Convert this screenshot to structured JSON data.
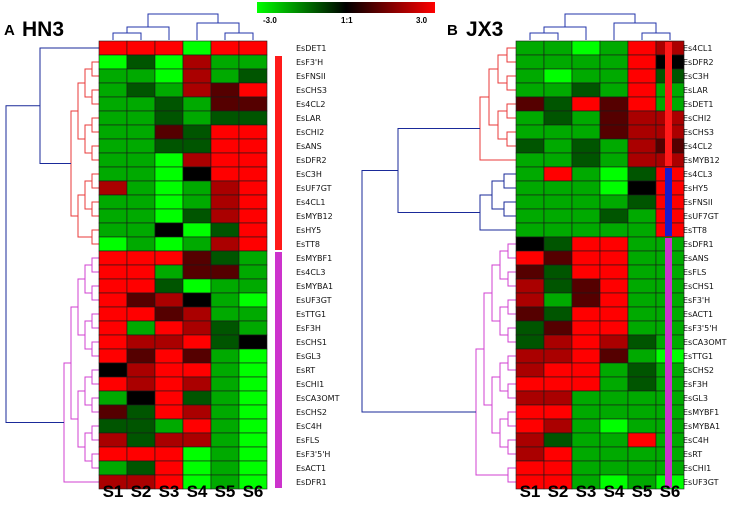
{
  "legend": {
    "min_label": "-3.0",
    "mid_label": "1:1",
    "max_label": "3.0",
    "low_color": "#00ff00",
    "mid_color": "#000000",
    "high_color": "#ff0000"
  },
  "chart_data": [
    {
      "type": "heatmap",
      "panel_letter": "A",
      "title": "HN3",
      "columns": [
        "S1",
        "S2",
        "S3",
        "S4",
        "S5",
        "S6"
      ],
      "color_range": [
        -3.0,
        3.0
      ],
      "rows": [
        "EsDET1",
        "EsF3'H",
        "EsFNSII",
        "EsCHS3",
        "Es4CL2",
        "EsLAR",
        "EsCHI2",
        "EsANS",
        "EsDFR2",
        "EsC3H",
        "EsUF7GT",
        "Es4CL1",
        "EsMYB12",
        "EsHY5",
        "EsTT8",
        "EsMYBF1",
        "Es4CL3",
        "EsMYBA1",
        "EsUF3GT",
        "EsTTG1",
        "EsF3H",
        "EsCHS1",
        "EsGL3",
        "EsRT",
        "EsCHI1",
        "EsCA3OMT",
        "EsCHS2",
        "EsC4H",
        "EsFLS",
        "EsF3'5'H",
        "EsACT1",
        "EsDFR1"
      ],
      "values": [
        [
          3,
          3,
          3,
          -3,
          3,
          3
        ],
        [
          -3,
          -1,
          -3,
          2,
          -2,
          -2
        ],
        [
          -2,
          -2,
          -3,
          2,
          -2,
          -1
        ],
        [
          -2,
          -1,
          -2,
          2,
          1,
          3
        ],
        [
          -2,
          -2,
          -1,
          -2,
          1,
          1
        ],
        [
          -2,
          -2,
          -1,
          -2,
          -1,
          -1
        ],
        [
          -2,
          -2,
          1,
          -1,
          3,
          3
        ],
        [
          -2,
          -2,
          -1,
          -1,
          3,
          3
        ],
        [
          -2,
          -2,
          -3,
          2,
          3,
          3
        ],
        [
          -2,
          -2,
          -3,
          0,
          3,
          3
        ],
        [
          2,
          -2,
          -3,
          -2,
          2,
          3
        ],
        [
          -2,
          -2,
          -3,
          -2,
          2,
          3
        ],
        [
          -2,
          -2,
          -3,
          -1,
          2,
          3
        ],
        [
          -2,
          -2,
          0,
          -3,
          -1,
          3
        ],
        [
          -3,
          -2,
          -3,
          -2,
          2,
          3
        ],
        [
          3,
          3,
          3,
          1,
          -1,
          -2
        ],
        [
          3,
          3,
          -2,
          1,
          1,
          -2
        ],
        [
          3,
          3,
          -1,
          -3,
          -2,
          -2
        ],
        [
          3,
          1,
          2,
          0,
          -2,
          -3
        ],
        [
          3,
          3,
          1,
          2,
          -2,
          -2
        ],
        [
          3,
          -2,
          3,
          2,
          -1,
          -2
        ],
        [
          3,
          2,
          2,
          3,
          -1,
          0
        ],
        [
          3,
          1,
          3,
          1,
          -2,
          -3
        ],
        [
          0,
          2,
          3,
          3,
          -2,
          -3
        ],
        [
          3,
          2,
          3,
          2,
          -2,
          -3
        ],
        [
          -2,
          0,
          3,
          -1,
          -2,
          -3
        ],
        [
          1,
          -1,
          3,
          2,
          -2,
          -3
        ],
        [
          -1,
          -1,
          -2,
          3,
          -2,
          -3
        ],
        [
          2,
          -1,
          2,
          2,
          -2,
          -3
        ],
        [
          3,
          3,
          3,
          -3,
          -2,
          -3
        ],
        [
          -2,
          -1,
          3,
          -3,
          -2,
          -3
        ],
        [
          2,
          2,
          3,
          -3,
          -2,
          -3
        ]
      ],
      "groups": [
        {
          "start": 1,
          "end": 14,
          "color": "#ff1a1a"
        },
        {
          "start": 15,
          "end": 31,
          "color": "#cc33cc"
        }
      ]
    },
    {
      "type": "heatmap",
      "panel_letter": "B",
      "title": "JX3",
      "columns": [
        "S1",
        "S2",
        "S3",
        "S4",
        "S5",
        "S6"
      ],
      "color_range": [
        -3.0,
        3.0
      ],
      "rows": [
        "Es4CL1",
        "EsDFR2",
        "EsC3H",
        "EsLAR",
        "EsDET1",
        "EsCHI2",
        "EsCHS3",
        "Es4CL2",
        "EsMYB12",
        "Es4CL3",
        "EsHY5",
        "EsFNSII",
        "EsUF7GT",
        "EsTT8",
        "EsDFR1",
        "EsANS",
        "EsFLS",
        "EsCHS1",
        "EsF3'H",
        "EsACT1",
        "EsF3'5'H",
        "EsCA3OMT",
        "EsTTG1",
        "EsCHS2",
        "EsF3H",
        "EsGL3",
        "EsMYBF1",
        "EsMYBA1",
        "EsC4H",
        "EsRT",
        "EsCHI1",
        "EsUF3GT"
      ],
      "values": [
        [
          -2,
          -2,
          -3,
          -2,
          3,
          2
        ],
        [
          -2,
          -2,
          -2,
          -2,
          3,
          0
        ],
        [
          -2,
          -3,
          -2,
          -2,
          3,
          -1
        ],
        [
          -2,
          -2,
          -1,
          -2,
          3,
          -2
        ],
        [
          1,
          -1,
          3,
          1,
          3,
          -2
        ],
        [
          -2,
          -1,
          -2,
          1,
          2,
          2
        ],
        [
          -2,
          -2,
          -2,
          1,
          2,
          2
        ],
        [
          -1,
          -2,
          -1,
          -2,
          2,
          1
        ],
        [
          -2,
          -2,
          -1,
          -2,
          2,
          2
        ],
        [
          -2,
          3,
          -2,
          -3,
          -1,
          3
        ],
        [
          -2,
          -2,
          -2,
          -3,
          0,
          3
        ],
        [
          -2,
          -2,
          -2,
          -2,
          -1,
          3
        ],
        [
          -2,
          -2,
          -2,
          -1,
          -2,
          3
        ],
        [
          -2,
          -2,
          -2,
          -2,
          -2,
          3
        ],
        [
          0,
          -1,
          3,
          3,
          -2,
          -2
        ],
        [
          3,
          1,
          3,
          3,
          -2,
          -2
        ],
        [
          1,
          -1,
          3,
          3,
          -2,
          -2
        ],
        [
          2,
          -1,
          1,
          3,
          -2,
          -2
        ],
        [
          2,
          -2,
          1,
          3,
          -2,
          -2
        ],
        [
          1,
          -1,
          3,
          3,
          -2,
          -2
        ],
        [
          -1,
          1,
          3,
          3,
          -2,
          -2
        ],
        [
          -1,
          2,
          3,
          2,
          -1,
          -2
        ],
        [
          2,
          2,
          3,
          1,
          -2,
          -3
        ],
        [
          2,
          3,
          3,
          -2,
          -1,
          -2
        ],
        [
          3,
          3,
          3,
          -2,
          -1,
          -2
        ],
        [
          2,
          2,
          -2,
          -2,
          -2,
          -2
        ],
        [
          3,
          3,
          -2,
          -2,
          -2,
          -2
        ],
        [
          3,
          2,
          -2,
          -3,
          -2,
          -2
        ],
        [
          2,
          -1,
          -2,
          -2,
          3,
          -2
        ],
        [
          2,
          3,
          -2,
          -2,
          -2,
          -2
        ],
        [
          3,
          3,
          -2,
          -2,
          -2,
          -2
        ],
        [
          3,
          3,
          -2,
          -3,
          -2,
          -3
        ]
      ],
      "groups": [
        {
          "start": 0,
          "end": 8,
          "color": "#ff1a1a"
        },
        {
          "start": 9,
          "end": 13,
          "color": "#1a1acc"
        },
        {
          "start": 14,
          "end": 31,
          "color": "#cc33cc"
        }
      ]
    }
  ]
}
